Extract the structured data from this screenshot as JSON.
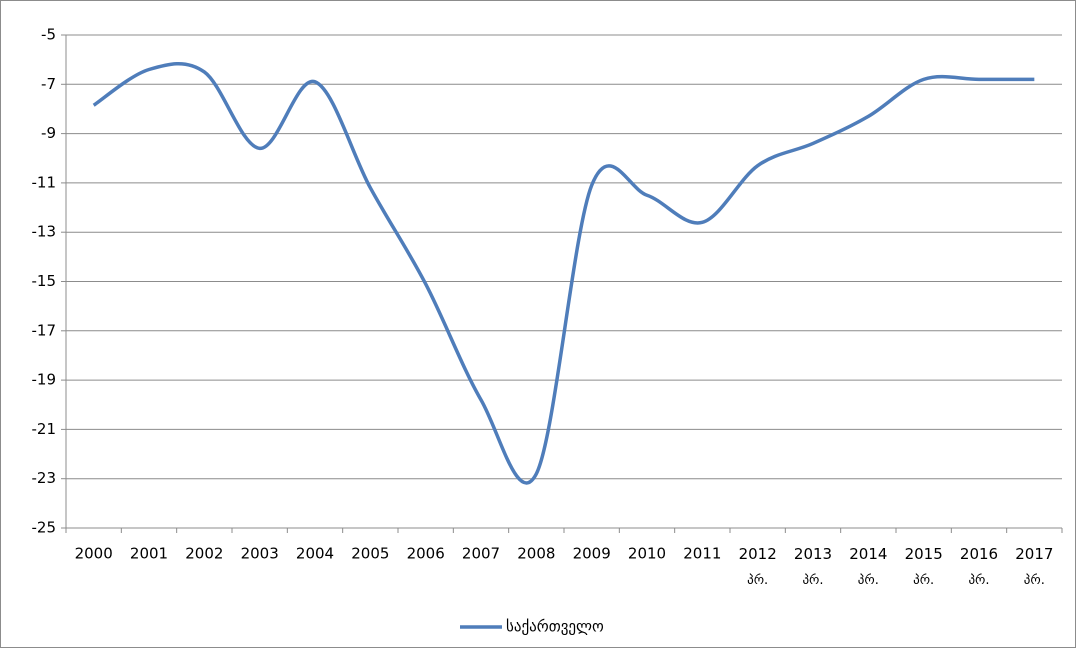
{
  "chart_data": {
    "type": "line",
    "categories": [
      "2000",
      "2001",
      "2002",
      "2003",
      "2004",
      "2005",
      "2006",
      "2007",
      "2008",
      "2009",
      "2010",
      "2011",
      "2012 პრ.",
      "2013 პრ.",
      "2014 პრ.",
      "2015 პრ.",
      "2016 პრ.",
      "2017 პრ."
    ],
    "series": [
      {
        "name": "საქართველო",
        "color": "#4f7dba",
        "values": [
          -7.85,
          -6.4,
          -6.5,
          -9.6,
          -6.9,
          -11.2,
          -15.1,
          -19.8,
          -22.8,
          -11.1,
          -11.5,
          -12.6,
          -10.3,
          -9.4,
          -8.3,
          -6.8,
          -6.8,
          -6.8
        ]
      }
    ],
    "ylim": [
      -25,
      -5
    ],
    "yticks": [
      -25,
      -23,
      -21,
      -19,
      -17,
      -15,
      -13,
      -11,
      -9,
      -7,
      -5
    ],
    "grid": true,
    "legend": "bottom",
    "smooth": true
  }
}
